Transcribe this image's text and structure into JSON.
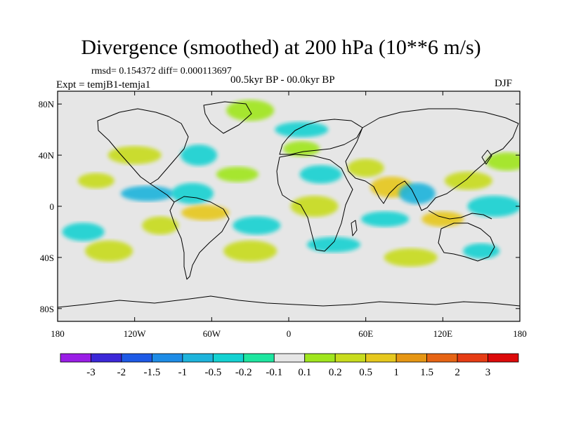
{
  "chart_data": {
    "type": "heatmap",
    "title": "Divergence (smoothed) at 200 hPa (10**6 m/s)",
    "stats_label": "rmsd= 0.154372 diff= 0.000113697",
    "experiment_label": "Expt = temjB1-temja1",
    "period_label": "00.5kyr BP - 00.0kyr BP",
    "season": "DJF",
    "x_axis": {
      "range": [
        -180,
        180
      ],
      "ticks": [
        -180,
        -120,
        -60,
        0,
        60,
        120,
        180
      ],
      "tick_labels": [
        "180",
        "120W",
        "60W",
        "0",
        "60E",
        "120E",
        "180"
      ]
    },
    "y_axis": {
      "range": [
        -90,
        90
      ],
      "ticks": [
        80,
        40,
        0,
        -40,
        -80
      ],
      "tick_labels": [
        "80N",
        "40N",
        "0",
        "40S",
        "80S"
      ]
    },
    "colorbar": {
      "tick_labels": [
        "-3",
        "-2",
        "-1.5",
        "-1",
        "-0.5",
        "-0.2",
        "-0.1",
        "0.1",
        "0.2",
        "0.5",
        "1",
        "1.5",
        "2",
        "3"
      ],
      "colors": [
        "#9a1ee6",
        "#3c28d8",
        "#1e5ae6",
        "#1e8ce6",
        "#1eb4dc",
        "#14d2d2",
        "#1ee6a0",
        "#e6e6e6",
        "#a0e61e",
        "#c8dc1e",
        "#e6c81e",
        "#e69614",
        "#e66414",
        "#e63c14",
        "#dc0a0a"
      ]
    },
    "fields": [
      {
        "lon": -150,
        "lat": 20,
        "value": 0.3
      },
      {
        "lon": -160,
        "lat": -20,
        "value": -0.4
      },
      {
        "lon": -140,
        "lat": -35,
        "value": 0.3
      },
      {
        "lon": -110,
        "lat": 10,
        "value": -0.5
      },
      {
        "lon": -100,
        "lat": -15,
        "value": 0.5
      },
      {
        "lon": -75,
        "lat": 10,
        "value": -0.4
      },
      {
        "lon": -65,
        "lat": -5,
        "value": 0.6
      },
      {
        "lon": -120,
        "lat": 40,
        "value": 0.3
      },
      {
        "lon": -70,
        "lat": 40,
        "value": -0.3
      },
      {
        "lon": -40,
        "lat": 25,
        "value": 0.2
      },
      {
        "lon": -25,
        "lat": -15,
        "value": -0.3
      },
      {
        "lon": -30,
        "lat": -35,
        "value": 0.3
      },
      {
        "lon": 10,
        "lat": 45,
        "value": 0.2
      },
      {
        "lon": 25,
        "lat": 25,
        "value": -0.2
      },
      {
        "lon": 20,
        "lat": 0,
        "value": 0.4
      },
      {
        "lon": 35,
        "lat": -30,
        "value": -0.3
      },
      {
        "lon": 60,
        "lat": 30,
        "value": 0.3
      },
      {
        "lon": 80,
        "lat": 15,
        "value": 0.8
      },
      {
        "lon": 75,
        "lat": -10,
        "value": -0.3
      },
      {
        "lon": 95,
        "lat": -40,
        "value": 0.5
      },
      {
        "lon": 100,
        "lat": 10,
        "value": -0.5
      },
      {
        "lon": 120,
        "lat": -10,
        "value": 0.7
      },
      {
        "lon": 140,
        "lat": 20,
        "value": 0.4
      },
      {
        "lon": 160,
        "lat": 0,
        "value": -0.3
      },
      {
        "lon": 150,
        "lat": -35,
        "value": -0.3
      },
      {
        "lon": 170,
        "lat": 35,
        "value": 0.2
      },
      {
        "lon": -30,
        "lat": 75,
        "value": 0.2
      },
      {
        "lon": 10,
        "lat": 60,
        "value": -0.2
      }
    ]
  }
}
